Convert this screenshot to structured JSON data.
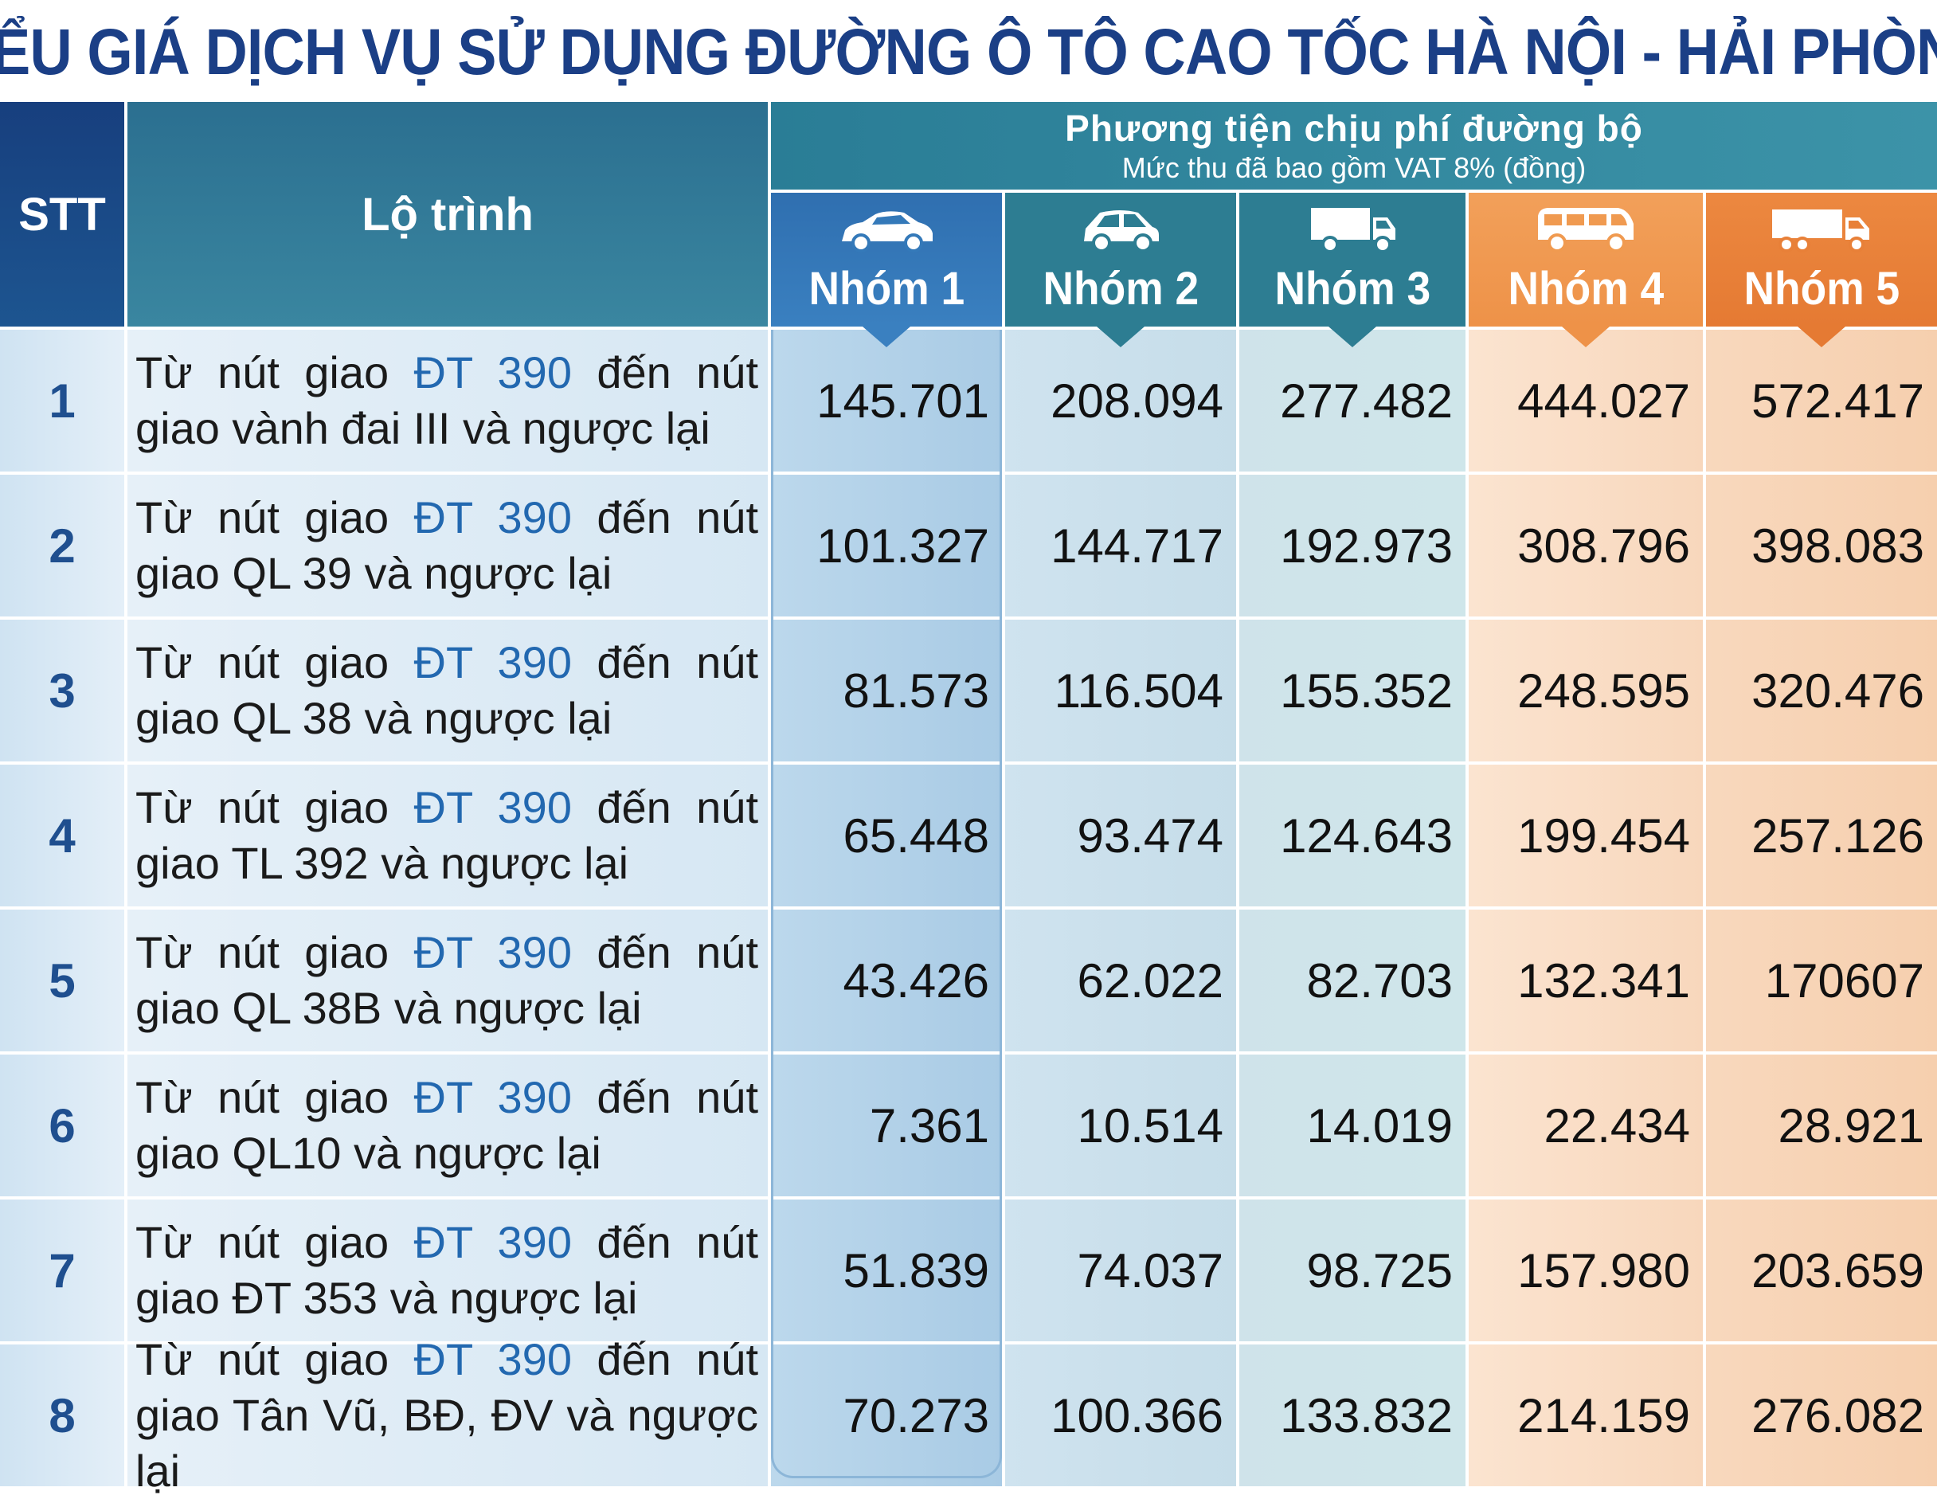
{
  "title": "BIỂU GIÁ DỊCH VỤ SỬ DỤNG ĐƯỜNG Ô TÔ CAO TỐC HÀ NỘI - HẢI PHÒNG",
  "header": {
    "stt": "STT",
    "route": "Lộ trình",
    "group_title": "Phương tiện chịu phí đường bộ",
    "group_subtitle": "Mức thu đã bao gồm VAT 8% (đồng)",
    "groups": [
      {
        "label": "Nhóm 1",
        "icon": "sedan-car-icon",
        "color": "#3479b9"
      },
      {
        "label": "Nhóm 2",
        "icon": "hatchback-car-icon",
        "color": "#2d7d92"
      },
      {
        "label": "Nhóm 3",
        "icon": "small-truck-icon",
        "color": "#2d7d92"
      },
      {
        "label": "Nhóm 4",
        "icon": "bus-icon",
        "color": "#f09a50"
      },
      {
        "label": "Nhóm 5",
        "icon": "large-truck-icon",
        "color": "#e88038"
      }
    ]
  },
  "rows": [
    {
      "stt": "1",
      "route_pre": "Từ nút giao ",
      "route_hl": "ĐT 390",
      "route_post": " đến nút giao vành đai III và ngược lại",
      "values": [
        "145.701",
        "208.094",
        "277.482",
        "444.027",
        "572.417"
      ]
    },
    {
      "stt": "2",
      "route_pre": "Từ nút giao ",
      "route_hl": "ĐT 390",
      "route_post": " đến nút giao QL 39 và ngược lại",
      "values": [
        "101.327",
        "144.717",
        "192.973",
        "308.796",
        "398.083"
      ]
    },
    {
      "stt": "3",
      "route_pre": "Từ nút giao ",
      "route_hl": "ĐT 390",
      "route_post": " đến nút giao QL 38 và ngược lại",
      "values": [
        "81.573",
        "116.504",
        "155.352",
        "248.595",
        "320.476"
      ]
    },
    {
      "stt": "4",
      "route_pre": "Từ nút giao ",
      "route_hl": "ĐT 390",
      "route_post": " đến nút giao TL 392 và ngược lại",
      "values": [
        "65.448",
        "93.474",
        "124.643",
        "199.454",
        "257.126"
      ]
    },
    {
      "stt": "5",
      "route_pre": "Từ nút giao ",
      "route_hl": "ĐT 390",
      "route_post": " đến nút giao QL 38B và ngược lại",
      "values": [
        "43.426",
        "62.022",
        "82.703",
        "132.341",
        "170607"
      ]
    },
    {
      "stt": "6",
      "route_pre": "Từ nút giao ",
      "route_hl": "ĐT 390",
      "route_post": " đến nút giao QL10 và ngược lại",
      "values": [
        "7.361",
        "10.514",
        "14.019",
        "22.434",
        "28.921"
      ]
    },
    {
      "stt": "7",
      "route_pre": "Từ nút giao ",
      "route_hl": "ĐT 390",
      "route_post": " đến nút giao ĐT 353 và ngược lại",
      "values": [
        "51.839",
        "74.037",
        "98.725",
        "157.980",
        "203.659"
      ]
    },
    {
      "stt": "8",
      "route_pre": "Từ nút giao ",
      "route_hl": "ĐT 390",
      "route_post": " đến nút giao Tân Vũ, BĐ, ĐV và ngược lại",
      "values": [
        "70.273",
        "100.366",
        "133.832",
        "214.159",
        "276.082"
      ]
    }
  ]
}
